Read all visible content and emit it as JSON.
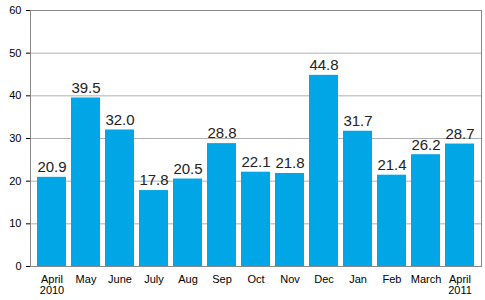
{
  "chart_data": {
    "type": "bar",
    "categories": [
      "April\n2010",
      "May",
      "June",
      "July",
      "Aug",
      "Sep",
      "Oct",
      "Nov",
      "Dec",
      "Jan",
      "Feb",
      "March",
      "April\n2011"
    ],
    "values": [
      20.9,
      39.5,
      32.0,
      17.8,
      20.5,
      28.8,
      22.1,
      21.8,
      44.8,
      31.7,
      21.4,
      26.2,
      28.7
    ],
    "value_labels": [
      "20.9",
      "39.5",
      "32.0",
      "17.8",
      "20.5",
      "28.8",
      "22.1",
      "21.8",
      "44.8",
      "31.7",
      "21.4",
      "26.2",
      "28.7"
    ],
    "data_labels": true,
    "color": "#00a6e6",
    "ylim": [
      0,
      60
    ],
    "yticks": [
      0,
      10,
      20,
      30,
      40,
      50,
      60
    ],
    "grid": true
  }
}
